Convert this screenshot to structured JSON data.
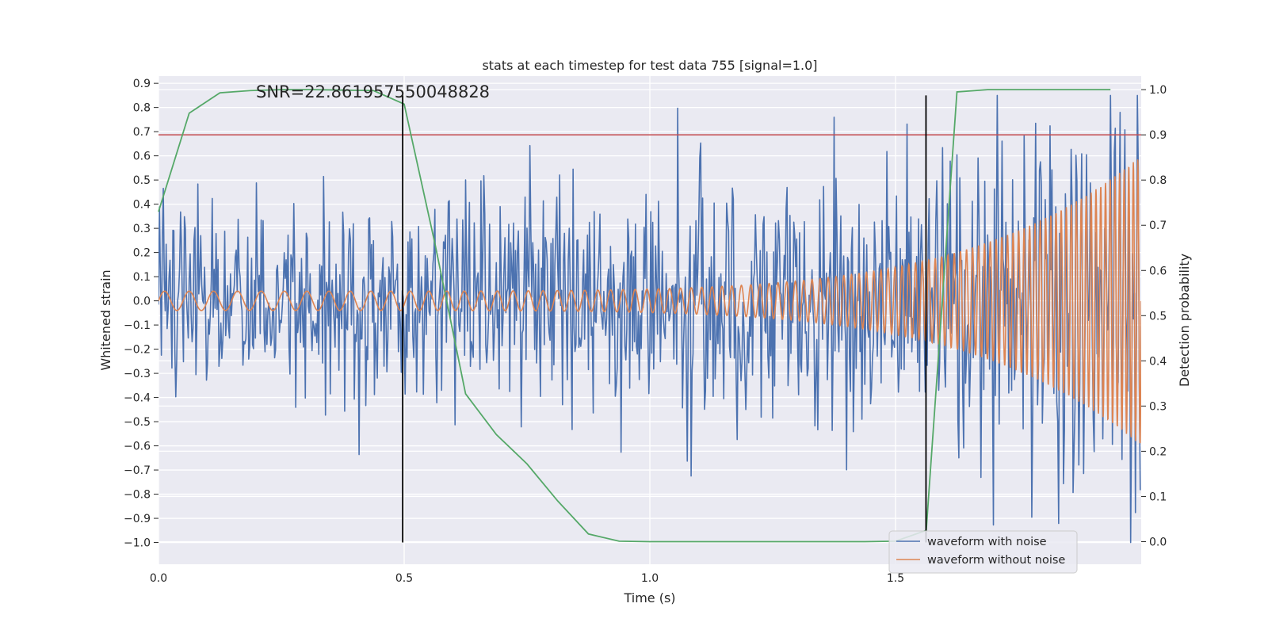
{
  "chart_data": {
    "type": "line",
    "title": "stats at each timestep for test data 755 [signal=1.0]",
    "xlabel": "Time (s)",
    "ylabel_left": "Whitened strain",
    "ylabel_right": "Detection probability",
    "xlim": [
      0.0,
      2.0
    ],
    "ylim_left": [
      -1.09,
      0.93
    ],
    "ylim_right": [
      -0.05,
      1.03
    ],
    "x_ticks": [
      0.0,
      0.5,
      1.0,
      1.5
    ],
    "x_tick_labels": [
      "0.0",
      "0.5",
      "1.0",
      "1.5"
    ],
    "y_left_ticks": [
      0.9,
      0.8,
      0.7,
      0.6,
      0.5,
      0.4,
      0.3,
      0.2,
      0.1,
      0.0,
      -0.1,
      -0.2,
      -0.3,
      -0.4,
      -0.5,
      -0.6,
      -0.7,
      -0.8,
      -0.9,
      -1.0
    ],
    "y_left_tick_labels": [
      "0.9",
      "0.8",
      "0.7",
      "0.6",
      "0.5",
      "0.4",
      "0.3",
      "0.2",
      "0.1",
      "0.0",
      "−0.1",
      "−0.2",
      "−0.3",
      "−0.4",
      "−0.5",
      "−0.6",
      "−0.7",
      "−0.8",
      "−0.9",
      "−1.0"
    ],
    "y_right_ticks": [
      1.0,
      0.9,
      0.8,
      0.7,
      0.6,
      0.5,
      0.4,
      0.3,
      0.2,
      0.1,
      0.0
    ],
    "y_right_tick_labels": [
      "1.0",
      "0.9",
      "0.8",
      "0.7",
      "0.6",
      "0.5",
      "0.4",
      "0.3",
      "0.2",
      "0.1",
      "0.0"
    ],
    "grid": true,
    "background": "#eaeaf2",
    "annotation": "SNR=22.861957550048828",
    "threshold_line": {
      "axis": "right",
      "y": 0.9,
      "color": "#c44e52"
    },
    "vertical_markers": [
      {
        "x": 0.497,
        "y_left_range": [
          -1.0,
          0.85
        ],
        "color": "#000000"
      },
      {
        "x": 1.562,
        "y_left_range": [
          -1.0,
          0.85
        ],
        "color": "#000000"
      }
    ],
    "series": [
      {
        "name": "waveform with noise",
        "axis": "left",
        "color": "#4c72b0",
        "kind": "noise",
        "n_samples": 1024,
        "std_start": 0.19,
        "std_end": 0.28,
        "approx_range": [
          -1.0,
          0.85
        ]
      },
      {
        "name": "waveform without noise",
        "axis": "left",
        "color": "#dd8452",
        "kind": "chirp",
        "freq_start_hz": 20,
        "freq_end_hz": 110,
        "amplitude_start": 0.04,
        "amplitude_end": 0.6
      },
      {
        "axis": "right",
        "color": "#55a868",
        "kind": "probability",
        "x": [
          0.0,
          0.0625,
          0.125,
          0.1875,
          0.25,
          0.3125,
          0.375,
          0.4375,
          0.5,
          0.5625,
          0.625,
          0.6875,
          0.75,
          0.8125,
          0.875,
          0.9375,
          1.0,
          1.0625,
          1.125,
          1.1875,
          1.25,
          1.3125,
          1.375,
          1.4375,
          1.5,
          1.5625,
          1.625,
          1.6875,
          1.75,
          1.8125,
          1.875,
          1.9375
        ],
        "y": [
          0.73,
          0.948,
          0.993,
          0.998,
          1.0,
          1.0,
          0.999,
          0.998,
          0.968,
          0.66,
          0.327,
          0.237,
          0.172,
          0.09,
          0.017,
          0.001,
          0.0,
          0.0,
          0.0,
          0.0,
          0.0,
          0.0,
          0.0,
          0.0,
          0.001,
          0.025,
          0.995,
          1.0,
          1.0,
          1.0,
          1.0,
          1.0
        ]
      }
    ],
    "legend": {
      "position": "lower-right",
      "entries": [
        {
          "label": "waveform with noise",
          "color": "#4c72b0"
        },
        {
          "label": "waveform without noise",
          "color": "#dd8452"
        }
      ]
    }
  }
}
